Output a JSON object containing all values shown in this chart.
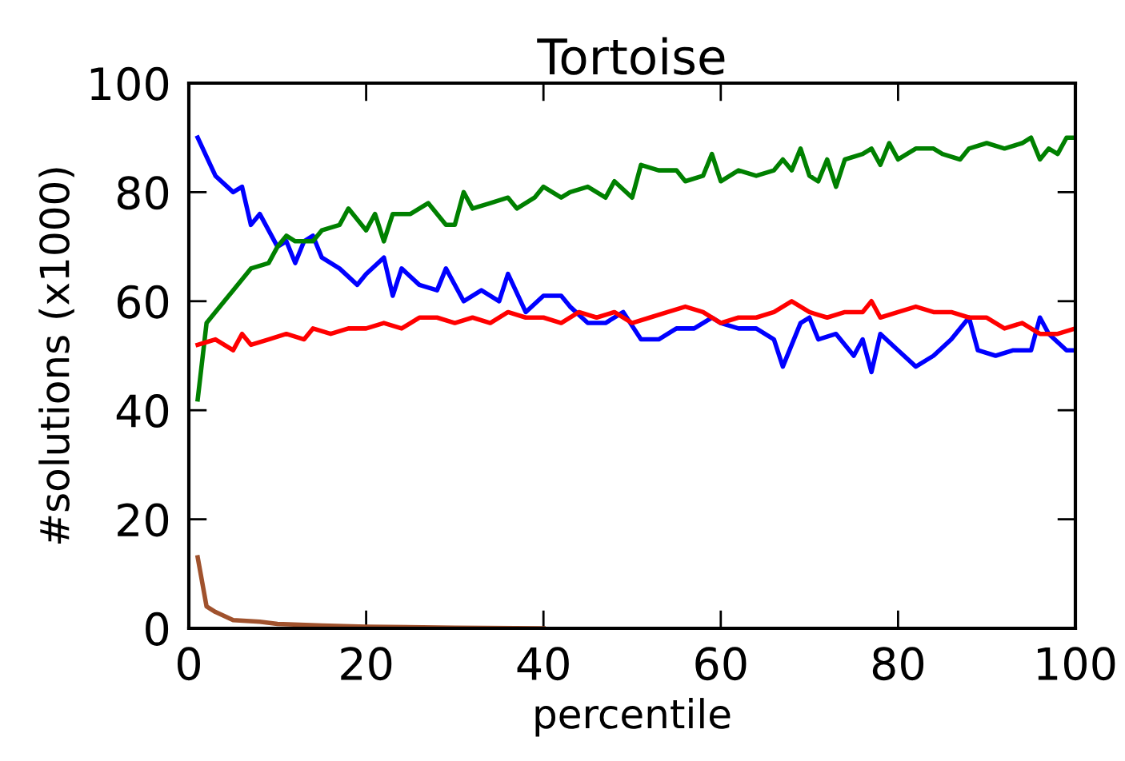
{
  "chart_data": {
    "type": "line",
    "title": "Tortoise",
    "xlabel": "percentile",
    "ylabel": "#solutions (x1000)",
    "xlim": [
      0,
      100
    ],
    "ylim": [
      0,
      100
    ],
    "xticks": [
      0,
      20,
      40,
      60,
      80,
      100
    ],
    "yticks": [
      0,
      20,
      40,
      60,
      80,
      100
    ],
    "grid": false,
    "marker": "none",
    "line_style": "solid",
    "series": [
      {
        "color": "#0000ff",
        "x": [
          1,
          3,
          5,
          6,
          7,
          8,
          10,
          11,
          12,
          13,
          14,
          15,
          17,
          19,
          20,
          22,
          23,
          24,
          26,
          28,
          29,
          31,
          33,
          35,
          36,
          38,
          40,
          42,
          43,
          45,
          47,
          49,
          51,
          53,
          55,
          57,
          59,
          60,
          62,
          64,
          66,
          67,
          69,
          70,
          71,
          73,
          75,
          76,
          77,
          78,
          80,
          82,
          84,
          86,
          88,
          89,
          91,
          93,
          95,
          96,
          97,
          99,
          100
        ],
        "values": [
          90,
          83,
          80,
          81,
          74,
          76,
          70,
          71,
          67,
          71,
          72,
          68,
          66,
          63,
          65,
          68,
          61,
          66,
          63,
          62,
          66,
          60,
          62,
          60,
          65,
          58,
          61,
          61,
          59,
          56,
          56,
          58,
          53,
          53,
          55,
          55,
          57,
          56,
          55,
          55,
          53,
          48,
          56,
          57,
          53,
          54,
          50,
          53,
          47,
          54,
          51,
          48,
          50,
          53,
          57,
          51,
          50,
          51,
          51,
          57,
          54,
          51,
          51
        ]
      },
      {
        "color": "#008000",
        "x": [
          1,
          2,
          4,
          5,
          7,
          9,
          10,
          11,
          12,
          14,
          15,
          17,
          18,
          20,
          21,
          22,
          23,
          25,
          27,
          29,
          30,
          31,
          32,
          34,
          36,
          37,
          39,
          40,
          42,
          43,
          45,
          47,
          48,
          50,
          51,
          53,
          55,
          56,
          58,
          59,
          60,
          62,
          64,
          66,
          67,
          68,
          69,
          70,
          71,
          72,
          73,
          74,
          76,
          77,
          78,
          79,
          80,
          82,
          84,
          85,
          87,
          88,
          90,
          92,
          94,
          95,
          96,
          97,
          98,
          99,
          100
        ],
        "values": [
          42,
          56,
          60,
          62,
          66,
          67,
          70,
          72,
          71,
          71,
          73,
          74,
          77,
          73,
          76,
          71,
          76,
          76,
          78,
          74,
          74,
          80,
          77,
          78,
          79,
          77,
          79,
          81,
          79,
          80,
          81,
          79,
          82,
          79,
          85,
          84,
          84,
          82,
          83,
          87,
          82,
          84,
          83,
          84,
          86,
          84,
          88,
          83,
          82,
          86,
          81,
          86,
          87,
          88,
          85,
          89,
          86,
          88,
          88,
          87,
          86,
          88,
          89,
          88,
          89,
          90,
          86,
          88,
          87,
          90,
          90
        ]
      },
      {
        "color": "#ff0000",
        "x": [
          1,
          3,
          4,
          5,
          6,
          7,
          9,
          11,
          13,
          14,
          16,
          18,
          20,
          22,
          24,
          26,
          28,
          30,
          32,
          34,
          36,
          38,
          40,
          42,
          44,
          46,
          48,
          50,
          52,
          54,
          56,
          58,
          60,
          62,
          64,
          66,
          68,
          70,
          72,
          74,
          76,
          77,
          78,
          80,
          82,
          84,
          86,
          88,
          90,
          92,
          94,
          96,
          98,
          100
        ],
        "values": [
          52,
          53,
          52,
          51,
          54,
          52,
          53,
          54,
          53,
          55,
          54,
          55,
          55,
          56,
          55,
          57,
          57,
          56,
          57,
          56,
          58,
          57,
          57,
          56,
          58,
          57,
          58,
          56,
          57,
          58,
          59,
          58,
          56,
          57,
          57,
          58,
          60,
          58,
          57,
          58,
          58,
          60,
          57,
          58,
          59,
          58,
          58,
          57,
          57,
          55,
          56,
          54,
          54,
          55
        ]
      },
      {
        "color": "#a0522d",
        "x": [
          1,
          2,
          3,
          5,
          8,
          10,
          15,
          20,
          30,
          40
        ],
        "values": [
          13,
          4,
          3,
          1.5,
          1.2,
          0.8,
          0.5,
          0.3,
          0.1,
          0
        ]
      }
    ]
  }
}
